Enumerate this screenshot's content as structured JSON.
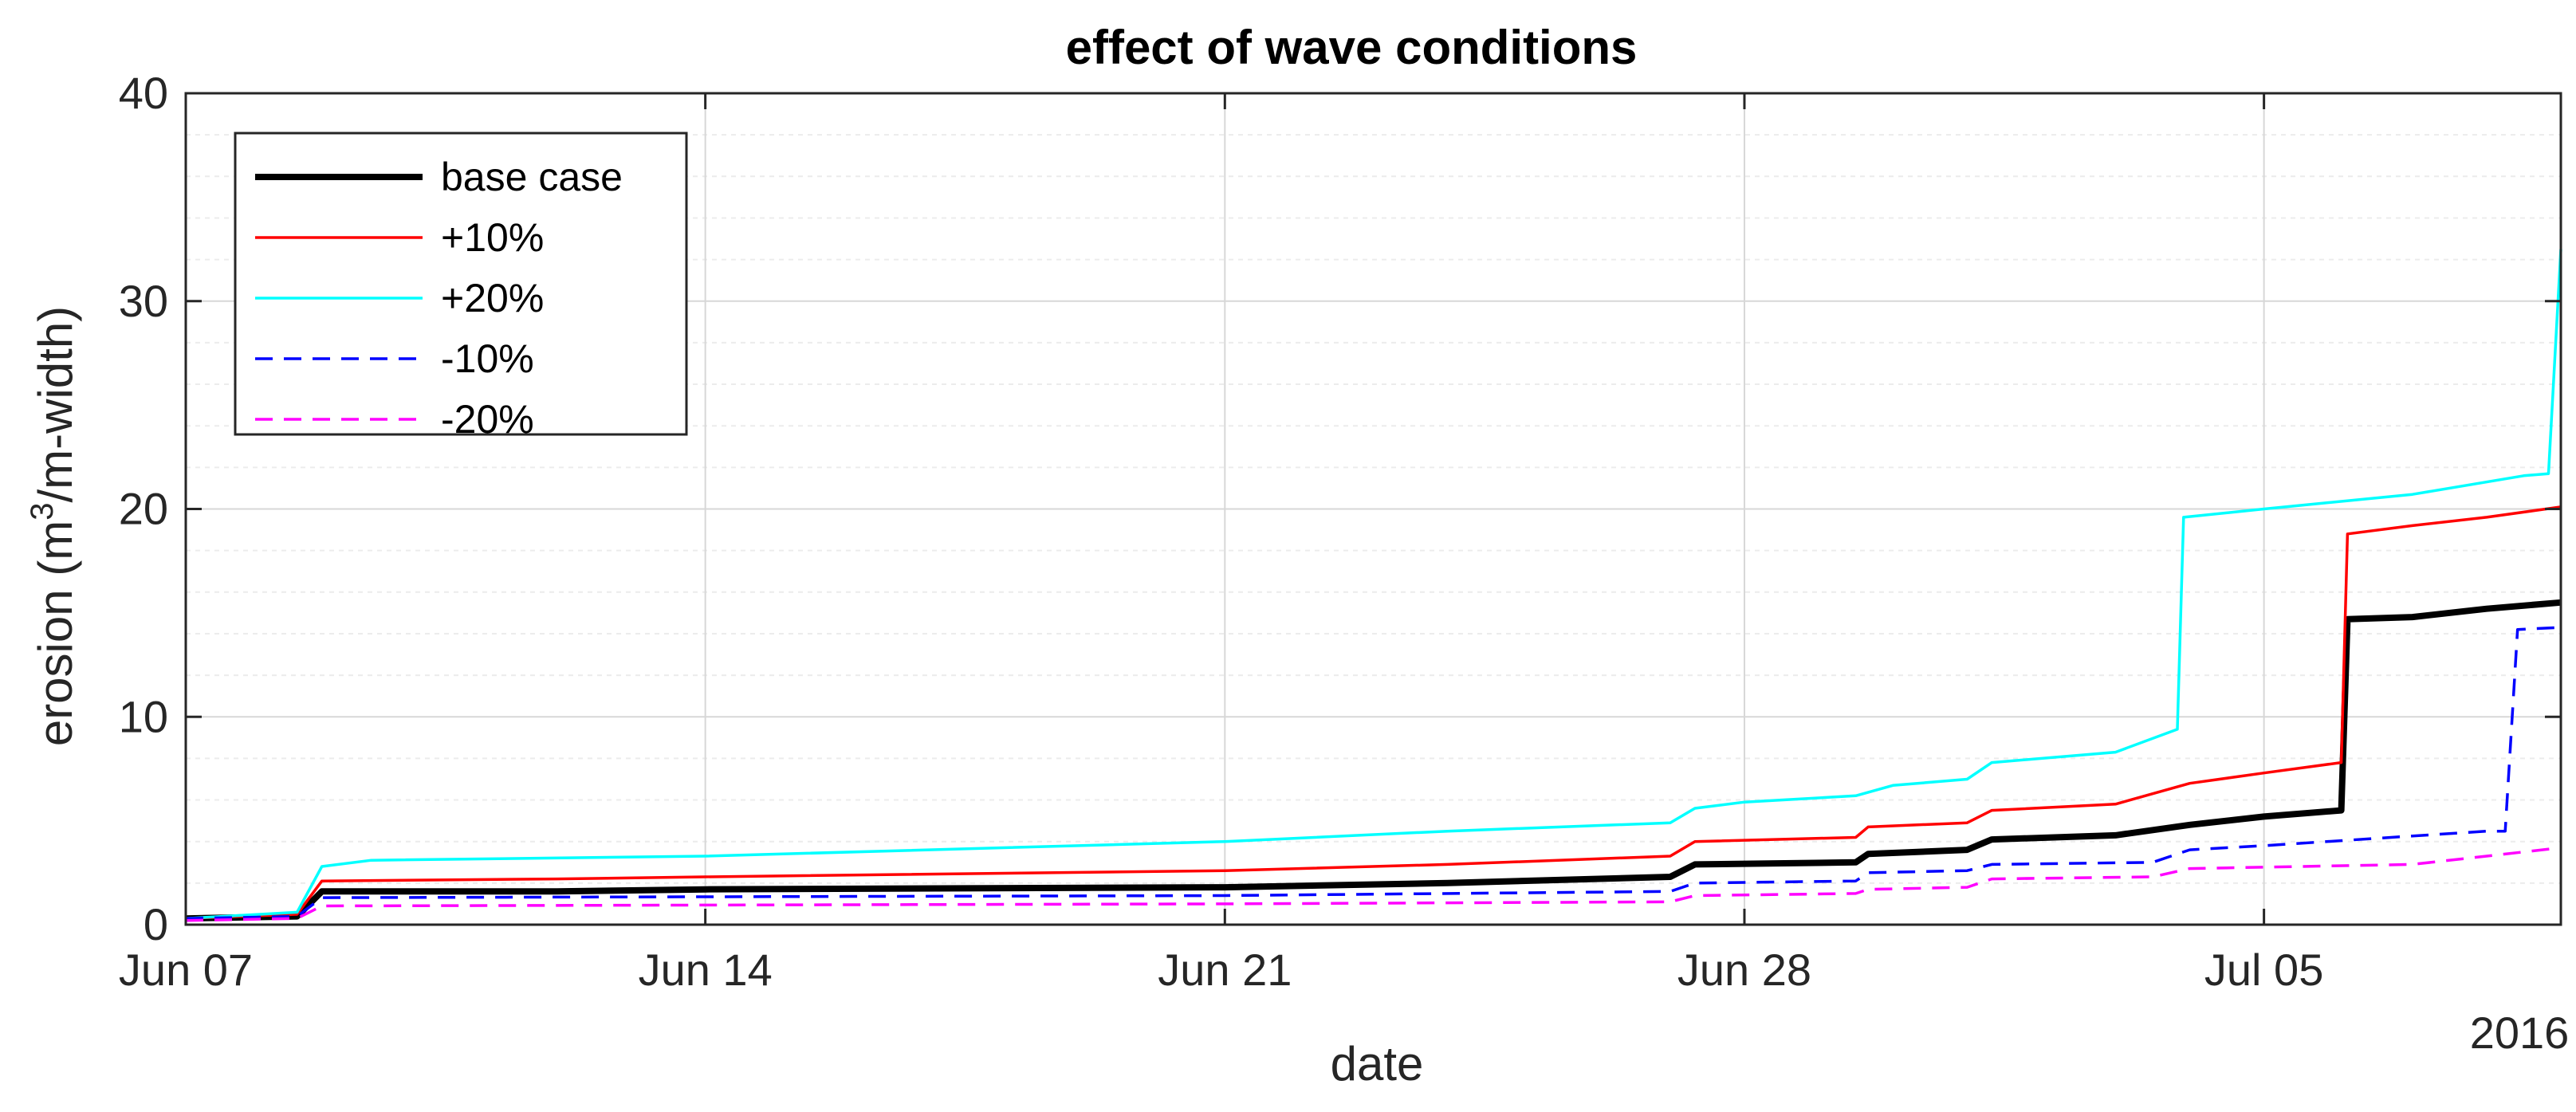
{
  "chart_data": {
    "type": "line",
    "title": "effect of wave conditions",
    "xlabel": "date",
    "ylabel_parts": {
      "before": "erosion (m",
      "sup": "3",
      "after": "/m-width)"
    },
    "year_label": "2016",
    "xlim": [
      "2016-06-07",
      "2016-07-09"
    ],
    "ylim": [
      0,
      40
    ],
    "x_ticks": [
      {
        "date": "2016-06-07",
        "label": "Jun 07"
      },
      {
        "date": "2016-06-14",
        "label": "Jun 14"
      },
      {
        "date": "2016-06-21",
        "label": "Jun 21"
      },
      {
        "date": "2016-06-28",
        "label": "Jun 28"
      },
      {
        "date": "2016-07-05",
        "label": "Jul 05"
      }
    ],
    "y_ticks": [
      {
        "value": 0,
        "label": "0"
      },
      {
        "value": 10,
        "label": "10"
      },
      {
        "value": 20,
        "label": "20"
      },
      {
        "value": 30,
        "label": "30"
      },
      {
        "value": 40,
        "label": "40"
      }
    ],
    "grid": true,
    "minor_grid": true,
    "legend_position": "top-left",
    "series": [
      {
        "name": "base case",
        "color": "#000000",
        "style": "solid",
        "weight": "thick",
        "points": [
          [
            "2016-06-07 00:00",
            0.3
          ],
          [
            "2016-06-08 12:00",
            0.4
          ],
          [
            "2016-06-08 20:00",
            1.6
          ],
          [
            "2016-06-12 00:00",
            1.6
          ],
          [
            "2016-06-14 00:00",
            1.7
          ],
          [
            "2016-06-21 00:00",
            1.8
          ],
          [
            "2016-06-24 00:00",
            2.0
          ],
          [
            "2016-06-27 00:00",
            2.3
          ],
          [
            "2016-06-27 08:00",
            2.9
          ],
          [
            "2016-06-29 12:00",
            3.0
          ],
          [
            "2016-06-29 16:00",
            3.4
          ],
          [
            "2016-07-01 00:00",
            3.6
          ],
          [
            "2016-07-01 08:00",
            4.1
          ],
          [
            "2016-07-03 00:00",
            4.3
          ],
          [
            "2016-07-04 00:00",
            4.8
          ],
          [
            "2016-07-05 00:00",
            5.2
          ],
          [
            "2016-07-06 01:00",
            5.5
          ],
          [
            "2016-07-06 03:00",
            14.7
          ],
          [
            "2016-07-07 00:00",
            14.8
          ],
          [
            "2016-07-08 00:00",
            15.2
          ],
          [
            "2016-07-09 00:00",
            15.5
          ]
        ]
      },
      {
        "name": "+10%",
        "color": "#ff0000",
        "style": "solid",
        "weight": "normal",
        "points": [
          [
            "2016-06-07 00:00",
            0.3
          ],
          [
            "2016-06-08 12:00",
            0.5
          ],
          [
            "2016-06-08 20:00",
            2.1
          ],
          [
            "2016-06-12 00:00",
            2.2
          ],
          [
            "2016-06-14 00:00",
            2.3
          ],
          [
            "2016-06-21 00:00",
            2.6
          ],
          [
            "2016-06-24 00:00",
            2.9
          ],
          [
            "2016-06-27 00:00",
            3.3
          ],
          [
            "2016-06-27 08:00",
            4.0
          ],
          [
            "2016-06-29 12:00",
            4.2
          ],
          [
            "2016-06-29 16:00",
            4.7
          ],
          [
            "2016-07-01 00:00",
            4.9
          ],
          [
            "2016-07-01 08:00",
            5.5
          ],
          [
            "2016-07-03 00:00",
            5.8
          ],
          [
            "2016-07-04 00:00",
            6.8
          ],
          [
            "2016-07-05 00:00",
            7.3
          ],
          [
            "2016-07-06 01:00",
            7.8
          ],
          [
            "2016-07-06 03:00",
            18.8
          ],
          [
            "2016-07-07 00:00",
            19.2
          ],
          [
            "2016-07-08 00:00",
            19.6
          ],
          [
            "2016-07-09 00:00",
            20.1
          ]
        ]
      },
      {
        "name": "+20%",
        "color": "#00ffff",
        "style": "solid",
        "weight": "normal",
        "points": [
          [
            "2016-06-07 00:00",
            0.3
          ],
          [
            "2016-06-08 12:00",
            0.6
          ],
          [
            "2016-06-08 20:00",
            2.8
          ],
          [
            "2016-06-09 12:00",
            3.1
          ],
          [
            "2016-06-14 00:00",
            3.3
          ],
          [
            "2016-06-21 00:00",
            4.0
          ],
          [
            "2016-06-24 00:00",
            4.5
          ],
          [
            "2016-06-27 00:00",
            4.9
          ],
          [
            "2016-06-27 08:00",
            5.6
          ],
          [
            "2016-06-28 00:00",
            5.9
          ],
          [
            "2016-06-29 12:00",
            6.2
          ],
          [
            "2016-06-30 00:00",
            6.7
          ],
          [
            "2016-07-01 00:00",
            7.0
          ],
          [
            "2016-07-01 08:00",
            7.8
          ],
          [
            "2016-07-03 00:00",
            8.3
          ],
          [
            "2016-07-03 20:00",
            9.4
          ],
          [
            "2016-07-03 22:00",
            19.6
          ],
          [
            "2016-07-05 00:00",
            20.0
          ],
          [
            "2016-07-07 00:00",
            20.7
          ],
          [
            "2016-07-08 12:00",
            21.6
          ],
          [
            "2016-07-08 20:00",
            21.7
          ],
          [
            "2016-07-09 00:00",
            32.5
          ]
        ]
      },
      {
        "name": "-10%",
        "color": "#0000ff",
        "style": "dashed",
        "weight": "normal",
        "points": [
          [
            "2016-06-07 00:00",
            0.3
          ],
          [
            "2016-06-08 12:00",
            0.4
          ],
          [
            "2016-06-08 20:00",
            1.3
          ],
          [
            "2016-06-21 00:00",
            1.4
          ],
          [
            "2016-06-27 00:00",
            1.6
          ],
          [
            "2016-06-27 08:00",
            2.0
          ],
          [
            "2016-06-29 12:00",
            2.1
          ],
          [
            "2016-06-29 16:00",
            2.5
          ],
          [
            "2016-07-01 00:00",
            2.6
          ],
          [
            "2016-07-01 08:00",
            2.9
          ],
          [
            "2016-07-03 12:00",
            3.0
          ],
          [
            "2016-07-04 00:00",
            3.6
          ],
          [
            "2016-07-05 00:00",
            3.8
          ],
          [
            "2016-07-08 00:00",
            4.5
          ],
          [
            "2016-07-08 06:00",
            4.5
          ],
          [
            "2016-07-08 10:00",
            14.2
          ],
          [
            "2016-07-09 00:00",
            14.3
          ]
        ]
      },
      {
        "name": "-20%",
        "color": "#ff00ff",
        "style": "dashed",
        "weight": "normal",
        "points": [
          [
            "2016-06-07 00:00",
            0.2
          ],
          [
            "2016-06-08 12:00",
            0.3
          ],
          [
            "2016-06-08 20:00",
            0.9
          ],
          [
            "2016-06-21 00:00",
            1.0
          ],
          [
            "2016-06-27 00:00",
            1.1
          ],
          [
            "2016-06-27 08:00",
            1.4
          ],
          [
            "2016-06-29 12:00",
            1.5
          ],
          [
            "2016-06-29 16:00",
            1.7
          ],
          [
            "2016-07-01 00:00",
            1.8
          ],
          [
            "2016-07-01 08:00",
            2.2
          ],
          [
            "2016-07-03 12:00",
            2.3
          ],
          [
            "2016-07-04 00:00",
            2.7
          ],
          [
            "2016-07-07 00:00",
            2.9
          ],
          [
            "2016-07-08 00:00",
            3.3
          ],
          [
            "2016-07-09 00:00",
            3.7
          ]
        ]
      }
    ]
  }
}
